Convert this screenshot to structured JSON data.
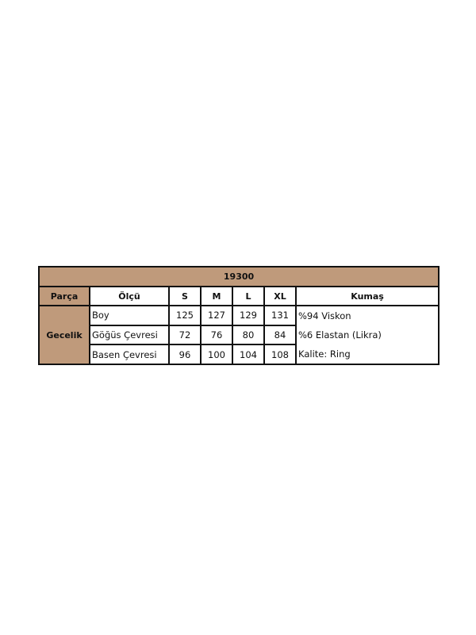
{
  "table": {
    "title": "19300",
    "headers": [
      "Parça",
      "Ölçü",
      "S",
      "M",
      "L",
      "XL",
      "Kumaş"
    ],
    "part": "Gecelik",
    "rows": [
      {
        "label": "Boy",
        "values": [
          "125",
          "127",
          "129",
          "131"
        ]
      },
      {
        "label": "Göğüs Çevresi",
        "values": [
          "72",
          "76",
          "80",
          "84"
        ]
      },
      {
        "label": "Basen Çevresi",
        "values": [
          "96",
          "100",
          "104",
          "108"
        ]
      }
    ],
    "fabric": [
      "%94 Viskon",
      "%6 Elastan (Likra)",
      "Kalite: Ring"
    ]
  },
  "colors": {
    "header_fill": "#bf9a7b",
    "border": "#111111"
  }
}
